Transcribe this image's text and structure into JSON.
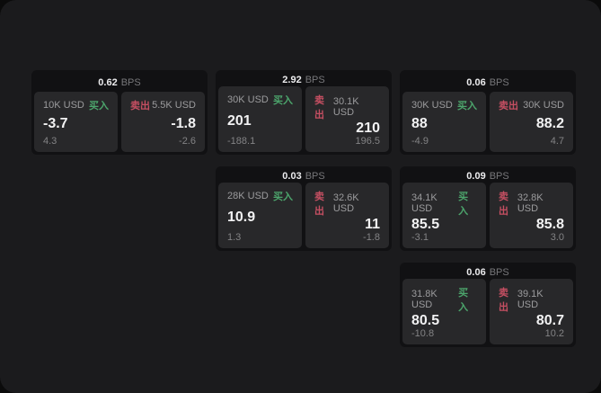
{
  "labels": {
    "buy": "买入",
    "sell": "卖出",
    "bps": "BPS"
  },
  "colors": {
    "buy_green": "#4ca56c",
    "sell_red": "#c54f62",
    "panel_background": "#1b1b1d",
    "card_background": "#111113",
    "tile_background": "#28282a",
    "price_text": "#f2f2f3",
    "muted_text": "#838385"
  },
  "cards": [
    {
      "bps_value": "0.62",
      "buy": {
        "notional": "10K USD",
        "price": "-3.7",
        "change": "4.3"
      },
      "sell": {
        "notional": "5.5K USD",
        "price": "-1.8",
        "change": "-2.6"
      }
    },
    {
      "bps_value": "2.92",
      "buy": {
        "notional": "30K USD",
        "price": "201",
        "change": "-188.1"
      },
      "sell": {
        "notional": "30.1K USD",
        "price": "210",
        "change": "196.5"
      }
    },
    {
      "bps_value": "0.06",
      "buy": {
        "notional": "30K USD",
        "price": "88",
        "change": "-4.9"
      },
      "sell": {
        "notional": "30K USD",
        "price": "88.2",
        "change": "4.7"
      }
    },
    {
      "bps_value": "0.03",
      "buy": {
        "notional": "28K USD",
        "price": "10.9",
        "change": "1.3"
      },
      "sell": {
        "notional": "32.6K USD",
        "price": "11",
        "change": "-1.8"
      }
    },
    {
      "bps_value": "0.09",
      "buy": {
        "notional": "34.1K USD",
        "price": "85.5",
        "change": "-3.1"
      },
      "sell": {
        "notional": "32.8K USD",
        "price": "85.8",
        "change": "3.0"
      }
    },
    {
      "bps_value": "0.06",
      "buy": {
        "notional": "31.8K USD",
        "price": "80.5",
        "change": "-10.8"
      },
      "sell": {
        "notional": "39.1K USD",
        "price": "80.7",
        "change": "10.2"
      }
    }
  ]
}
